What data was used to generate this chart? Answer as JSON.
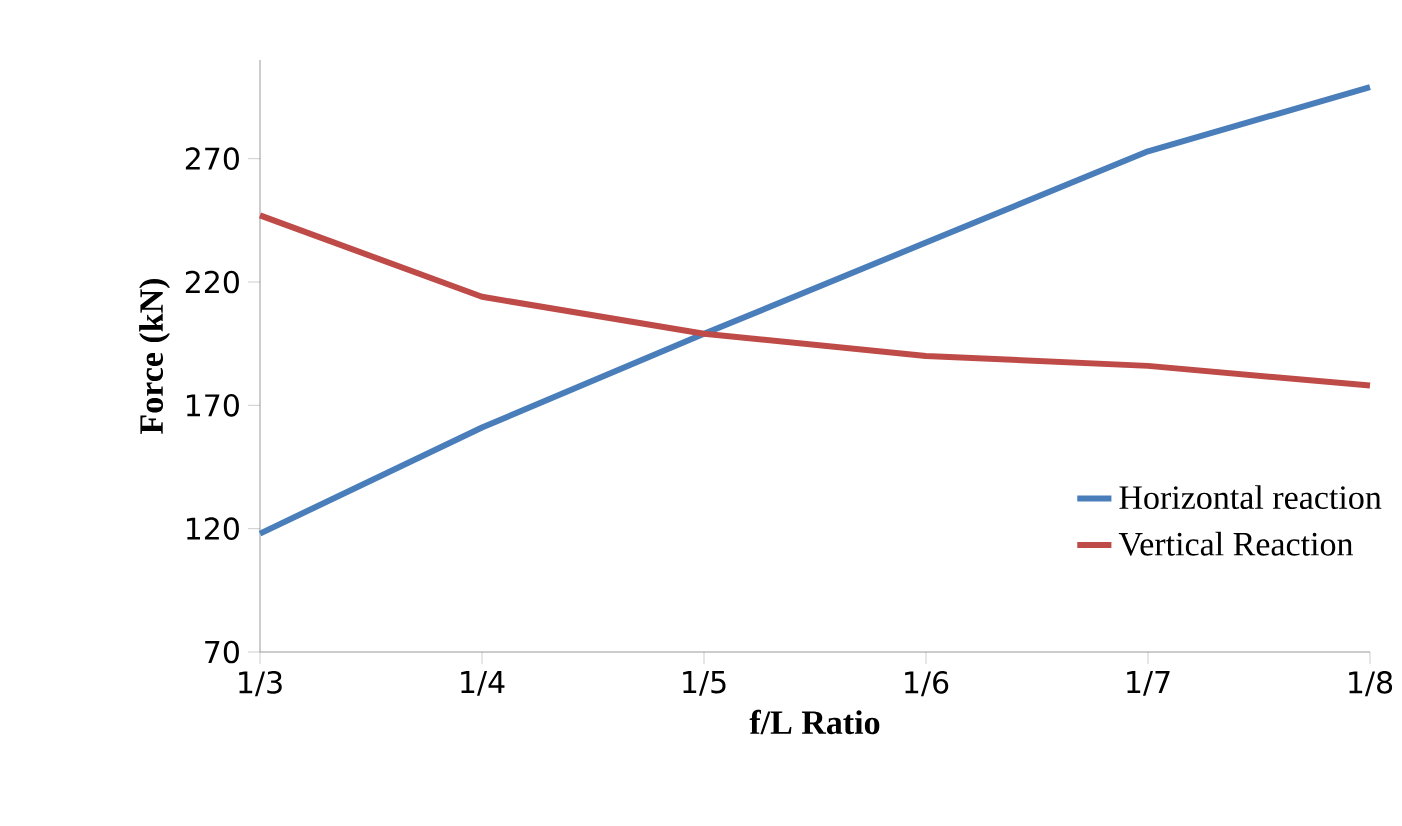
{
  "chart_data": {
    "type": "line",
    "xlabel": "f/L Ratio",
    "ylabel": "Force (kN)",
    "categories": [
      "1/3",
      "1/4",
      "1/5",
      "1/6",
      "1/7",
      "1/8"
    ],
    "series": [
      {
        "name": "Horizontal reaction",
        "color": "#4a7ebb",
        "values": [
          118,
          161,
          199,
          236,
          273,
          299
        ]
      },
      {
        "name": "Vertical Reaction",
        "color": "#be4b48",
        "values": [
          247,
          214,
          199,
          190,
          186,
          178
        ]
      }
    ],
    "ylim": [
      70,
      310
    ],
    "yticks": [
      70,
      120,
      170,
      220,
      270
    ],
    "grid": false,
    "legend": "right",
    "marker": "none",
    "line_style": "solid"
  }
}
